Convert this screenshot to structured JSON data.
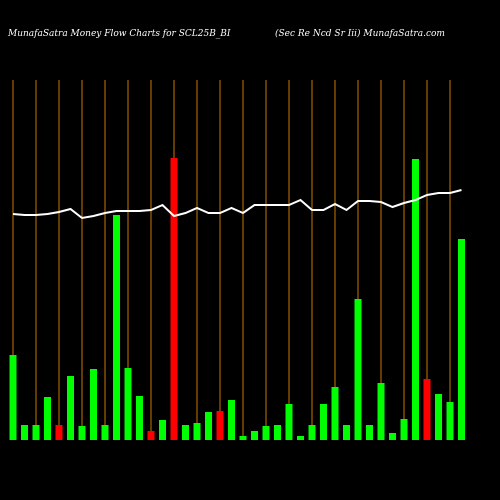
{
  "chart_data": {
    "type": "money-flow",
    "title": "MunafaSatra  Money Flow  Charts for SCL25B_BI",
    "subtitle": "(Sec Re   Ncd Sr Iii) MunafaSatra.com",
    "categories": [
      null,
      null,
      null,
      null,
      null,
      null,
      null,
      null,
      null,
      null,
      null,
      null,
      null,
      null,
      null,
      null,
      null,
      null,
      null,
      null,
      null,
      null,
      null,
      null,
      null,
      null,
      null,
      null,
      null,
      null,
      null,
      null,
      null,
      null,
      null,
      null,
      null,
      null,
      null,
      null
    ],
    "series": [
      {
        "type": "bar",
        "values": [
          85,
          15,
          15,
          43,
          15,
          64,
          14,
          71,
          15,
          225,
          72,
          44,
          9,
          20,
          282,
          15,
          17,
          28,
          29,
          40,
          4,
          9,
          14,
          15,
          36,
          4,
          15,
          36,
          53,
          15,
          141,
          15,
          57,
          7,
          21,
          281,
          61,
          46,
          38,
          201
        ],
        "colors": [
          "#00ff00",
          "#00ff00",
          "#00ff00",
          "#00ff00",
          "#ff0000",
          "#00ff00",
          "#00ff00",
          "#00ff00",
          "#00ff00",
          "#00ff00",
          "#00ff00",
          "#00ff00",
          "#ff0000",
          "#00ff00",
          "#ff0000",
          "#00ff00",
          "#00ff00",
          "#00ff00",
          "#ff0000",
          "#00ff00",
          "#00ff00",
          "#00ff00",
          "#00ff00",
          "#00ff00",
          "#00ff00",
          "#00ff00",
          "#00ff00",
          "#00ff00",
          "#00ff00",
          "#00ff00",
          "#00ff00",
          "#00ff00",
          "#00ff00",
          "#00ff00",
          "#00ff00",
          "#00ff00",
          "#ff0000",
          "#00ff00",
          "#00ff00",
          "#00ff00"
        ]
      },
      {
        "type": "line",
        "color": "#ffffff",
        "values": [
          226,
          225,
          225,
          226,
          228,
          231,
          222,
          224,
          227,
          229,
          229,
          229,
          230,
          235,
          224,
          227,
          232,
          227,
          227,
          232,
          227,
          235,
          235,
          235,
          235,
          240,
          230,
          230,
          236,
          230,
          239,
          239,
          238,
          233,
          237,
          240,
          245,
          247,
          247,
          250
        ]
      }
    ]
  }
}
